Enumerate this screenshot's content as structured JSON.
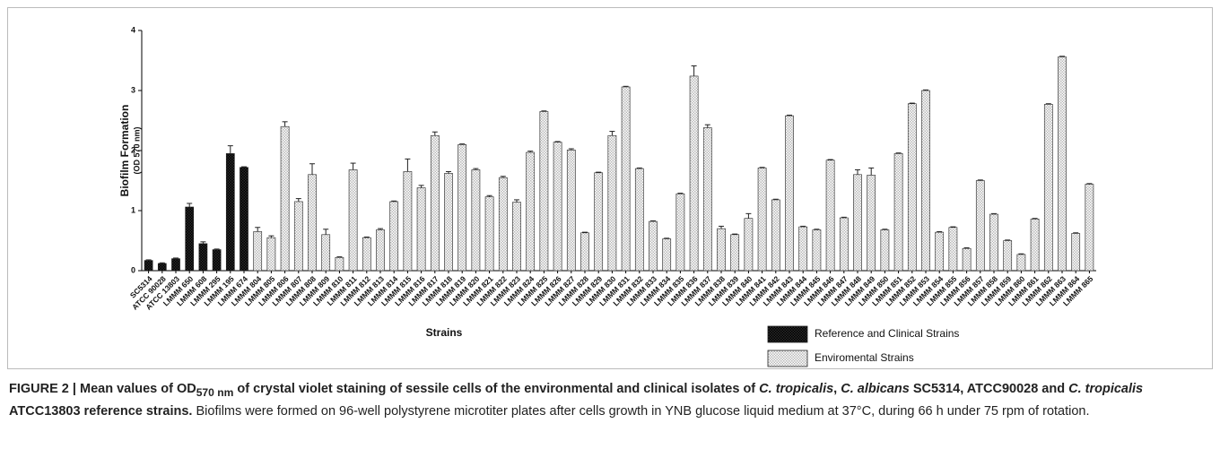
{
  "chart_data": {
    "type": "bar",
    "y_label": "Biofilm Formation",
    "y_sublabel": "(OD 570 nm)",
    "x_label": "Strains",
    "categories": [
      "SC5314",
      "ATCC 90028",
      "ATCC 13803",
      "LMMM 650",
      "LMMM 608",
      "LMMM 295",
      "LMMM 195",
      "LMMM 674",
      "LMMM 804",
      "LMMM 805",
      "LMMM 806",
      "LMMM 807",
      "LMMM 808",
      "LMMM 809",
      "LMMM 810",
      "LMMM 811",
      "LMMM 812",
      "LMMM 813",
      "LMMM 814",
      "LMMM 815",
      "LMMM 816",
      "LMMM 817",
      "LMMM 818",
      "LMMM 819",
      "LMMM 820",
      "LMMM 821",
      "LMMM 822",
      "LMMM 823",
      "LMMM 824",
      "LMMM 825",
      "LMMM 826",
      "LMMM 827",
      "LMMM 828",
      "LMMM 829",
      "LMMM 830",
      "LMMM 831",
      "LMMM 832",
      "LMMM 833",
      "LMMM 834",
      "LMMM 835",
      "LMMM 836",
      "LMMM 837",
      "LMMM 838",
      "LMMM 839",
      "LMMM 840",
      "LMMM 841",
      "LMMM 842",
      "LMMM 843",
      "LMMM 844",
      "LMMM 845",
      "LMMM 846",
      "LMMM 847",
      "LMMM 848",
      "LMMM 849",
      "LMMM 850",
      "LMMM 851",
      "LMMM 852",
      "LMMM 853",
      "LMMM 854",
      "LMMM 855",
      "LMMM 856",
      "LMMM 857",
      "LMMM 858",
      "LMMM 859",
      "LMMM 860",
      "LMMM 861",
      "LMMM 862",
      "LMMM 863",
      "LMMM 864",
      "LMMM 865"
    ],
    "series": [
      {
        "name": "Reference and Clinical Strains",
        "color": "#2a2a2a",
        "values": [
          0.17,
          0.12,
          0.2,
          1.06,
          0.45,
          0.35,
          1.95,
          1.72,
          null,
          null,
          null,
          null,
          null,
          null,
          null,
          null,
          null,
          null,
          null,
          null,
          null,
          null,
          null,
          null,
          null,
          null,
          null,
          null,
          null,
          null,
          null,
          null,
          null,
          null,
          null,
          null,
          null,
          null,
          null,
          null,
          null,
          null,
          null,
          null,
          null,
          null,
          null,
          null,
          null,
          null,
          null,
          null,
          null,
          null,
          null,
          null,
          null,
          null,
          null,
          null,
          null,
          null,
          null,
          null,
          null,
          null,
          null,
          null,
          null,
          null
        ],
        "errors": [
          0.01,
          0.01,
          0.01,
          0.06,
          0.03,
          0.01,
          0.13,
          0.01,
          null,
          null,
          null,
          null,
          null,
          null,
          null,
          null,
          null,
          null,
          null,
          null,
          null,
          null,
          null,
          null,
          null,
          null,
          null,
          null,
          null,
          null,
          null,
          null,
          null,
          null,
          null,
          null,
          null,
          null,
          null,
          null,
          null,
          null,
          null,
          null,
          null,
          null,
          null,
          null,
          null,
          null,
          null,
          null,
          null,
          null,
          null,
          null,
          null,
          null,
          null,
          null,
          null,
          null,
          null,
          null,
          null,
          null,
          null,
          null,
          null,
          null
        ]
      },
      {
        "name": "Enviromental Strains",
        "color": "#b8b8b8",
        "values": [
          null,
          null,
          null,
          null,
          null,
          null,
          null,
          null,
          0.65,
          0.55,
          2.4,
          1.15,
          1.6,
          0.6,
          0.22,
          1.68,
          0.55,
          0.68,
          1.15,
          1.65,
          1.38,
          2.25,
          1.62,
          2.1,
          1.68,
          1.23,
          1.55,
          1.14,
          1.97,
          2.65,
          2.14,
          2.01,
          0.63,
          1.63,
          2.25,
          3.06,
          1.7,
          0.82,
          0.53,
          1.28,
          3.24,
          2.38,
          0.7,
          0.6,
          0.87,
          1.71,
          1.18,
          2.58,
          0.73,
          0.68,
          1.84,
          0.88,
          1.6,
          1.59,
          0.68,
          1.95,
          2.78,
          3.0,
          0.64,
          0.72,
          0.37,
          1.5,
          0.94,
          0.5,
          0.27,
          0.86,
          2.77,
          3.56,
          0.62,
          1.44
        ],
        "errors": [
          null,
          null,
          null,
          null,
          null,
          null,
          null,
          null,
          0.07,
          0.03,
          0.08,
          0.05,
          0.18,
          0.09,
          0.01,
          0.11,
          0.01,
          0.02,
          0.01,
          0.21,
          0.04,
          0.06,
          0.03,
          0.01,
          0.02,
          0.02,
          0.02,
          0.04,
          0.02,
          0.01,
          0.01,
          0.02,
          0.01,
          0.01,
          0.07,
          0.01,
          0.01,
          0.01,
          0.01,
          0.01,
          0.17,
          0.05,
          0.04,
          0.01,
          0.08,
          0.01,
          0.01,
          0.01,
          0.01,
          0.01,
          0.01,
          0.01,
          0.08,
          0.12,
          0.01,
          0.01,
          0.01,
          0.01,
          0.01,
          0.01,
          0.01,
          0.01,
          0.01,
          0.01,
          0.01,
          0.01,
          0.01,
          0.01,
          0.01,
          0.01
        ]
      }
    ],
    "ylim": [
      0,
      4
    ],
    "yticks": [
      0,
      1,
      2,
      3,
      4
    ],
    "grid": false
  },
  "caption": {
    "title_parts": [
      "FIGURE 2 | Mean values of OD",
      "570 nm",
      " of crystal violet staining of sessile cells of the environmental and clinical isolates of ",
      "C. tropicalis",
      ", ",
      "C. albicans",
      " SC5314, ATCC90028 and ",
      "C. tropicalis",
      " ATCC13803 reference strains."
    ],
    "text": " Biofilms were formed on 96-well polystyrene microtiter plates after cells growth in YNB glucose liquid medium at 37°C, during 66 h under 75 rpm of rotation."
  }
}
